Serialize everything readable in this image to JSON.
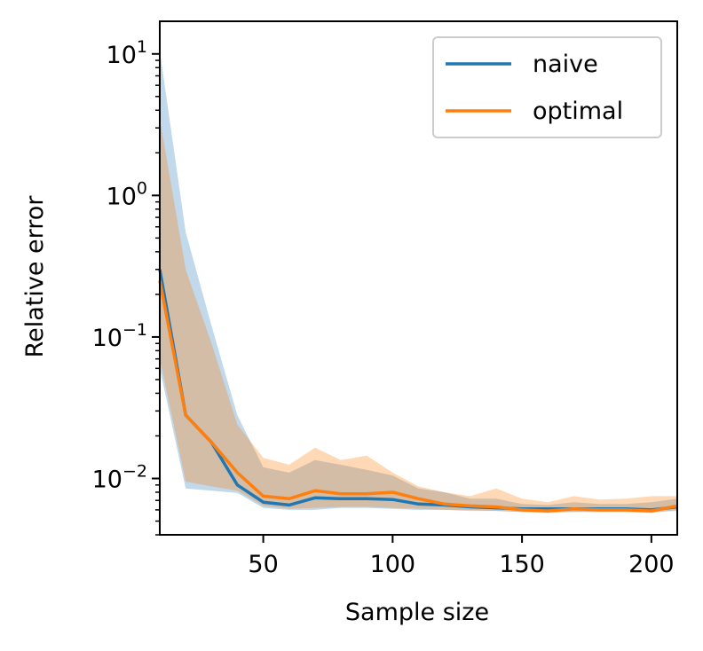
{
  "chart_data": {
    "type": "line",
    "xlabel": "Sample size",
    "ylabel": "Relative error",
    "yscale": "log",
    "xlim": [
      10,
      210
    ],
    "ylim": [
      0.004,
      17
    ],
    "xticks": [
      50,
      100,
      150,
      200
    ],
    "yticks": [
      {
        "value": 0.01,
        "base": "10",
        "exp": "−2"
      },
      {
        "value": 0.1,
        "base": "10",
        "exp": "−1"
      },
      {
        "value": 1,
        "base": "10",
        "exp": "0"
      },
      {
        "value": 10,
        "base": "10",
        "exp": "1"
      }
    ],
    "grid": false,
    "legend_position": "top-right",
    "x": [
      10,
      20,
      30,
      40,
      50,
      60,
      70,
      80,
      90,
      100,
      110,
      120,
      130,
      140,
      150,
      160,
      170,
      180,
      190,
      200,
      210
    ],
    "series": [
      {
        "name": "naive",
        "color": "#1f77b4",
        "values": [
          0.3,
          0.028,
          0.018,
          0.009,
          0.0068,
          0.0065,
          0.0073,
          0.0072,
          0.0072,
          0.0071,
          0.0066,
          0.0065,
          0.0063,
          0.0062,
          0.0061,
          0.0061,
          0.0061,
          0.0061,
          0.0061,
          0.006,
          0.0063
        ],
        "band_low": [
          0.06,
          0.0085,
          0.0082,
          0.0079,
          0.0062,
          0.006,
          0.006,
          0.0062,
          0.0062,
          0.0061,
          0.006,
          0.006,
          0.0059,
          0.0059,
          0.0058,
          0.0058,
          0.0058,
          0.0058,
          0.0058,
          0.0058,
          0.0059
        ],
        "band_high": [
          10.5,
          0.55,
          0.12,
          0.028,
          0.012,
          0.011,
          0.0135,
          0.0125,
          0.0115,
          0.0105,
          0.0085,
          0.008,
          0.0072,
          0.0072,
          0.0066,
          0.0065,
          0.0068,
          0.0066,
          0.0066,
          0.0068,
          0.0072
        ]
      },
      {
        "name": "optimal",
        "color": "#ff7f0e",
        "values": [
          0.25,
          0.028,
          0.018,
          0.011,
          0.0075,
          0.0072,
          0.0082,
          0.0078,
          0.0078,
          0.008,
          0.0072,
          0.0066,
          0.0064,
          0.0063,
          0.006,
          0.0059,
          0.0061,
          0.006,
          0.006,
          0.0059,
          0.0064
        ],
        "band_low": [
          0.07,
          0.0095,
          0.0088,
          0.0082,
          0.0064,
          0.0061,
          0.0062,
          0.0063,
          0.0063,
          0.0062,
          0.0061,
          0.006,
          0.006,
          0.0059,
          0.0058,
          0.0057,
          0.0058,
          0.0058,
          0.0058,
          0.0057,
          0.006
        ],
        "band_high": [
          3.5,
          0.3,
          0.09,
          0.024,
          0.014,
          0.0125,
          0.0165,
          0.0135,
          0.0145,
          0.011,
          0.0088,
          0.008,
          0.0075,
          0.0085,
          0.0072,
          0.0068,
          0.0075,
          0.0071,
          0.0072,
          0.0075,
          0.0075
        ]
      }
    ]
  }
}
